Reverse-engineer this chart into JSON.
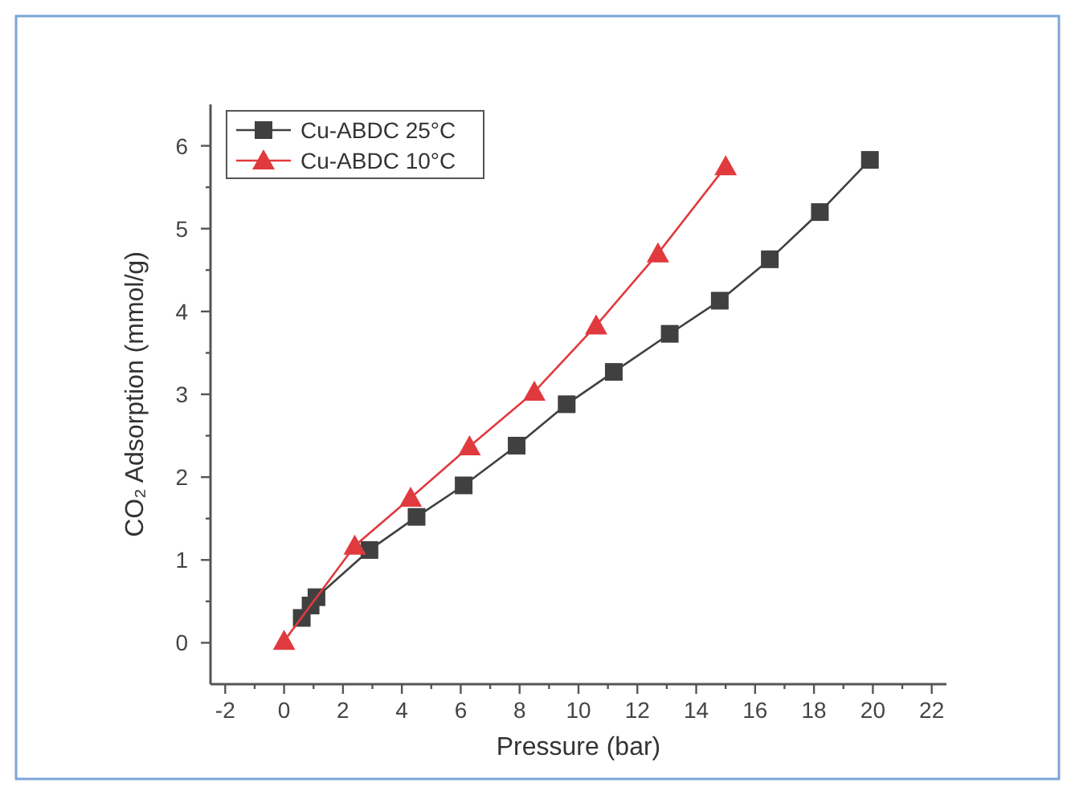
{
  "chart_data": {
    "type": "line",
    "xlabel": "Pressure (bar)",
    "ylabel": "CO₂ Adsorption (mmol/g)",
    "xlim": [
      -2.5,
      22.5
    ],
    "ylim": [
      -0.5,
      6.5
    ],
    "xticks": [
      -2,
      {
        "value": -1,
        "label": null
      },
      0,
      {
        "value": 1,
        "label": null
      },
      2,
      {
        "value": 3,
        "label": null
      },
      4,
      {
        "value": 5,
        "label": null
      },
      6,
      {
        "value": 7,
        "label": null
      },
      8,
      {
        "value": 9,
        "label": null
      },
      10,
      {
        "value": 11,
        "label": null
      },
      12,
      {
        "value": 13,
        "label": null
      },
      14,
      {
        "value": 15,
        "label": null
      },
      16,
      {
        "value": 17,
        "label": null
      },
      18,
      {
        "value": 19,
        "label": null
      },
      20,
      {
        "value": 21,
        "label": null
      },
      22
    ],
    "yticks": [
      0,
      {
        "value": 0.5,
        "label": null
      },
      1,
      {
        "value": 1.5,
        "label": null
      },
      2,
      {
        "value": 2.5,
        "label": null
      },
      3,
      {
        "value": 3.5,
        "label": null
      },
      4,
      {
        "value": 4.5,
        "label": null
      },
      5,
      {
        "value": 5.5,
        "label": null
      },
      6
    ],
    "legend": "top left",
    "grid": false,
    "series": [
      {
        "name": "Cu-ABDC 25°C",
        "color": "#404040",
        "marker": "square",
        "x": [
          0.6,
          0.9,
          1.1,
          2.9,
          4.5,
          6.1,
          7.9,
          9.6,
          11.2,
          13.1,
          14.8,
          16.5,
          18.2,
          19.9
        ],
        "values": [
          0.3,
          0.45,
          0.55,
          1.12,
          1.52,
          1.9,
          2.38,
          2.88,
          3.27,
          3.73,
          4.13,
          4.63,
          5.2,
          5.83
        ]
      },
      {
        "name": "Cu-ABDC 10°C",
        "color": "#e03a3e",
        "marker": "triangle",
        "x": [
          0,
          2.4,
          4.3,
          6.3,
          8.5,
          10.6,
          12.7,
          15
        ],
        "values": [
          0.02,
          1.17,
          1.75,
          2.37,
          3.03,
          3.83,
          4.7,
          5.75
        ]
      }
    ]
  }
}
